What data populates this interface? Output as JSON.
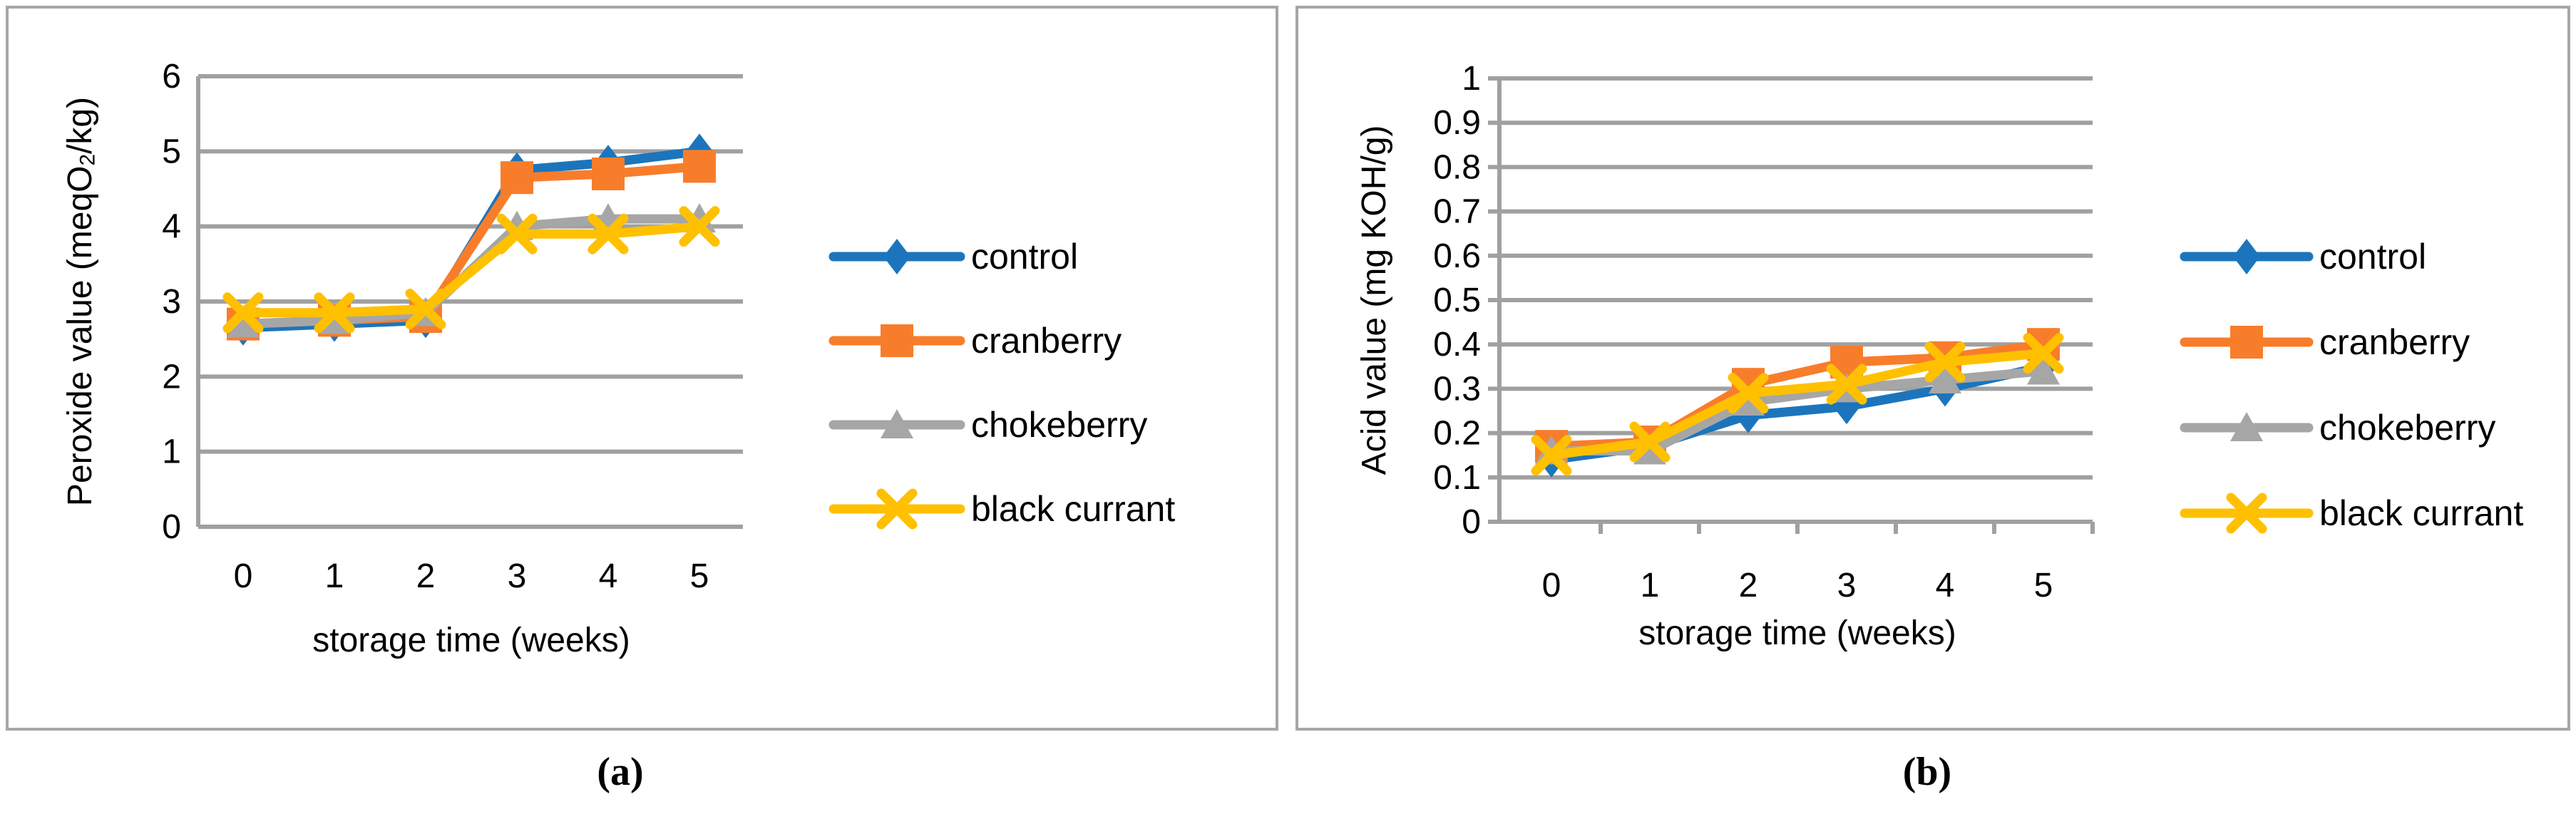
{
  "figure": {
    "caption_a": "(a)",
    "caption_b": "(b)",
    "panel_border_color": "#A6A6A6",
    "grid_color": "#A0A0A0",
    "text_color": "#000000"
  },
  "chart_data": [
    {
      "id": "a",
      "type": "line",
      "title": "",
      "xlabel": "storage time (weeks)",
      "ylabel": "Peroxide value (meqO₂/kg)",
      "x": [
        0,
        1,
        2,
        3,
        4,
        5
      ],
      "x_ticks": [
        "0",
        "1",
        "2",
        "3",
        "4",
        "5"
      ],
      "y_ticks": [
        "0",
        "1",
        "2",
        "3",
        "4",
        "5",
        "6"
      ],
      "ylim": [
        0,
        6
      ],
      "grid": "horizontal",
      "legend_position": "right",
      "series": [
        {
          "name": "control",
          "marker": "diamond",
          "color": "#1C75BC",
          "values": [
            2.65,
            2.7,
            2.75,
            4.75,
            4.85,
            5.0
          ]
        },
        {
          "name": "cranberry",
          "marker": "square",
          "color": "#F87D2B",
          "values": [
            2.7,
            2.75,
            2.8,
            4.65,
            4.7,
            4.8
          ]
        },
        {
          "name": "chokeberry",
          "marker": "triangle",
          "color": "#A6A6A6",
          "values": [
            2.7,
            2.75,
            2.85,
            4.0,
            4.1,
            4.1
          ]
        },
        {
          "name": "black currant",
          "marker": "x",
          "color": "#FFC000",
          "values": [
            2.85,
            2.85,
            2.9,
            3.9,
            3.9,
            4.0
          ]
        }
      ]
    },
    {
      "id": "b",
      "type": "line",
      "title": "",
      "xlabel": "storage time (weeks)",
      "ylabel": "Acid value (mg KOH/g)",
      "x": [
        0,
        1,
        2,
        3,
        4,
        5
      ],
      "x_ticks": [
        "0",
        "1",
        "2",
        "3",
        "4",
        "5"
      ],
      "y_ticks": [
        "0",
        "0.1",
        "0.2",
        "0.3",
        "0.4",
        "0.5",
        "0.6",
        "0.7",
        "0.8",
        "0.9",
        "1"
      ],
      "ylim": [
        0,
        1
      ],
      "grid": "horizontal",
      "legend_position": "right",
      "series": [
        {
          "name": "control",
          "marker": "diamond",
          "color": "#1C75BC",
          "values": [
            0.14,
            0.17,
            0.24,
            0.26,
            0.3,
            0.35
          ]
        },
        {
          "name": "cranberry",
          "marker": "square",
          "color": "#F87D2B",
          "values": [
            0.17,
            0.18,
            0.31,
            0.36,
            0.37,
            0.4
          ]
        },
        {
          "name": "chokeberry",
          "marker": "triangle",
          "color": "#A6A6A6",
          "values": [
            0.16,
            0.16,
            0.27,
            0.3,
            0.32,
            0.34
          ]
        },
        {
          "name": "black currant",
          "marker": "x",
          "color": "#FFC000",
          "values": [
            0.15,
            0.18,
            0.29,
            0.31,
            0.36,
            0.38
          ]
        }
      ]
    }
  ]
}
